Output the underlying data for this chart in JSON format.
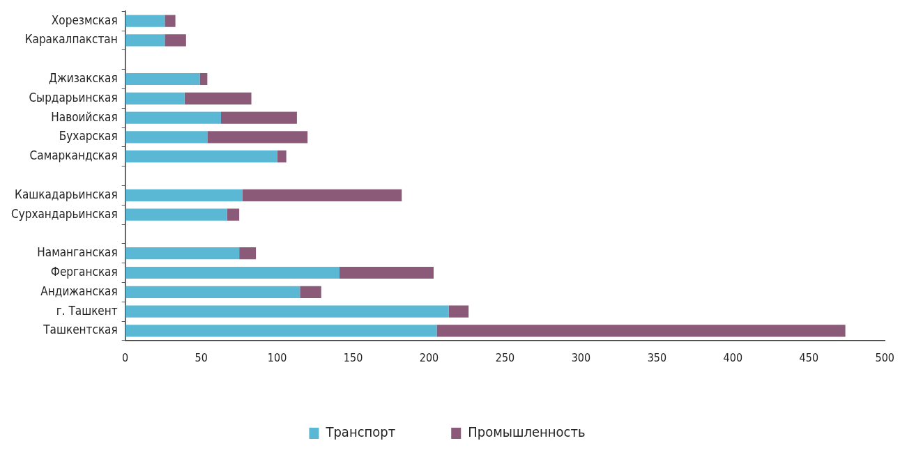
{
  "chart_data": {
    "type": "bar",
    "orientation": "horizontal",
    "stacked": true,
    "categories": [
      "Хорезмская",
      "Каракалпакстан",
      null,
      "Джизакская",
      "Сырдарьинская",
      "Навоийская",
      "Бухарская",
      "Самаркандская",
      null,
      "Кашкадарьинская",
      "Сурхандарьинская",
      null,
      "Наманганская",
      "Ферганская",
      "Андижанская",
      "г. Ташкент",
      "Ташкентская"
    ],
    "series": [
      {
        "name": "Транспорт",
        "color": "#5bb8d4",
        "values": [
          26,
          26,
          null,
          49,
          39,
          63,
          54,
          100,
          null,
          77,
          67,
          null,
          75,
          141,
          115,
          213,
          205
        ]
      },
      {
        "name": "Промышленность",
        "color": "#8a5a78",
        "values": [
          7,
          14,
          null,
          5,
          44,
          50,
          66,
          6,
          null,
          105,
          8,
          null,
          11,
          62,
          14,
          13,
          269
        ]
      }
    ],
    "xlim": [
      0,
      500
    ],
    "xticks": [
      0,
      50,
      100,
      150,
      200,
      250,
      300,
      350,
      400,
      450,
      500
    ],
    "grid": false,
    "legend": "bottom"
  }
}
